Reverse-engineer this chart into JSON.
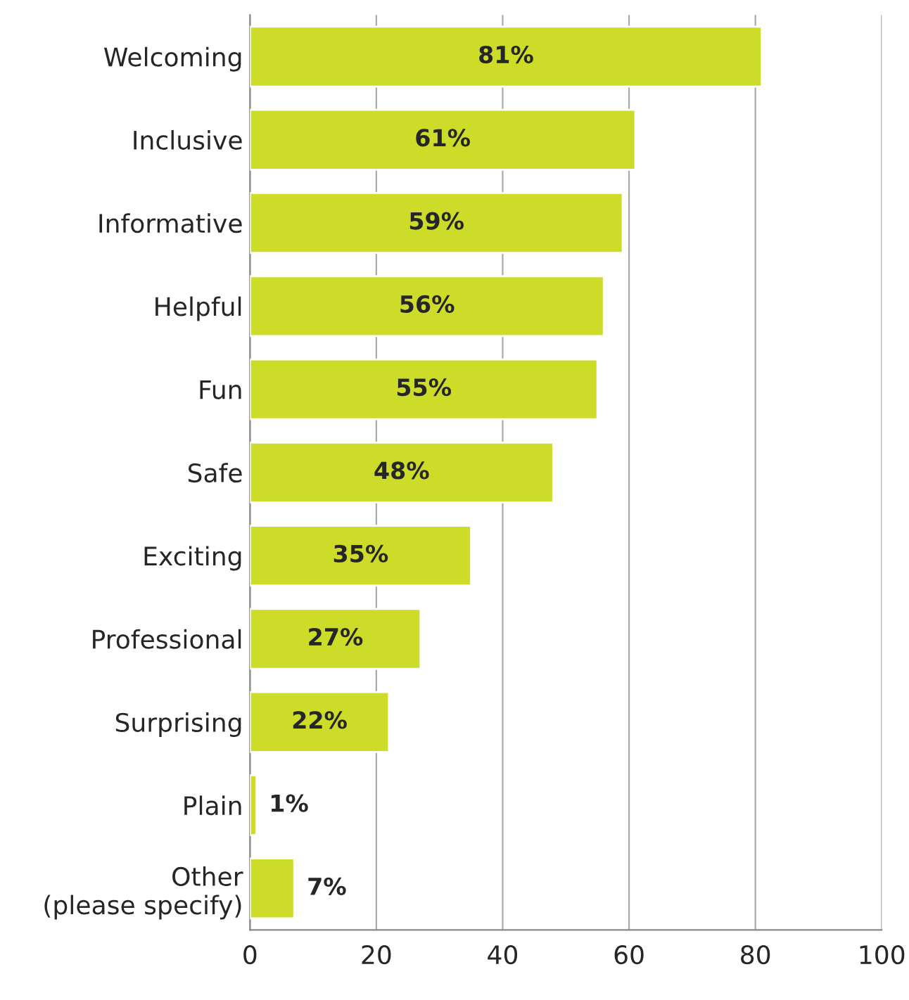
{
  "chart_data": {
    "type": "bar",
    "orientation": "horizontal",
    "categories": [
      "Welcoming",
      "Inclusive",
      "Informative",
      "Helpful",
      "Fun",
      "Safe",
      "Exciting",
      "Professional",
      "Surprising",
      "Plain",
      "Other\n(please specify)"
    ],
    "values": [
      81,
      61,
      59,
      56,
      55,
      48,
      35,
      27,
      22,
      1,
      7
    ],
    "value_labels": [
      "81%",
      "61%",
      "59%",
      "56%",
      "55%",
      "48%",
      "35%",
      "27%",
      "22%",
      "1%",
      "7%"
    ],
    "color": "#cddc28",
    "xlim": [
      0,
      100
    ],
    "xticks": [
      0,
      20,
      40,
      60,
      80,
      100
    ],
    "grid": "x"
  }
}
